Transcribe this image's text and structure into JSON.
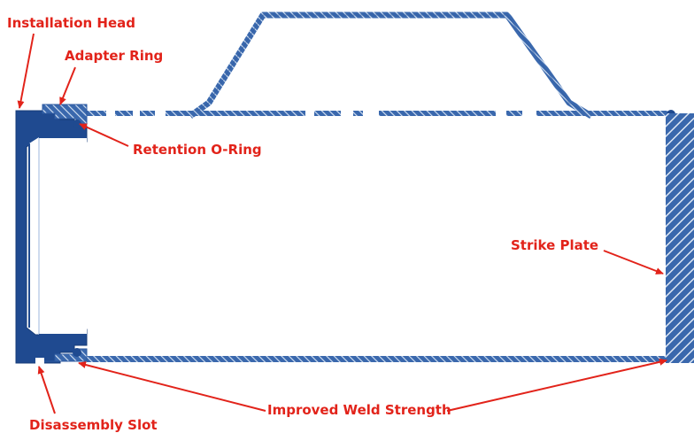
{
  "labels": {
    "installation_head": "Installation Head",
    "adapter_ring": "Adapter Ring",
    "retention_o_ring": "Retention O-Ring",
    "strike_plate": "Strike Plate",
    "disassembly_slot": "Disassembly Slot",
    "improved_weld_strength": "Improved Weld Strength"
  },
  "colors": {
    "label_red": "#e2231a",
    "part_blue": "#2d5aa0",
    "dark_blue": "#1f4a90",
    "hatch_light": "#d6e3f3"
  }
}
